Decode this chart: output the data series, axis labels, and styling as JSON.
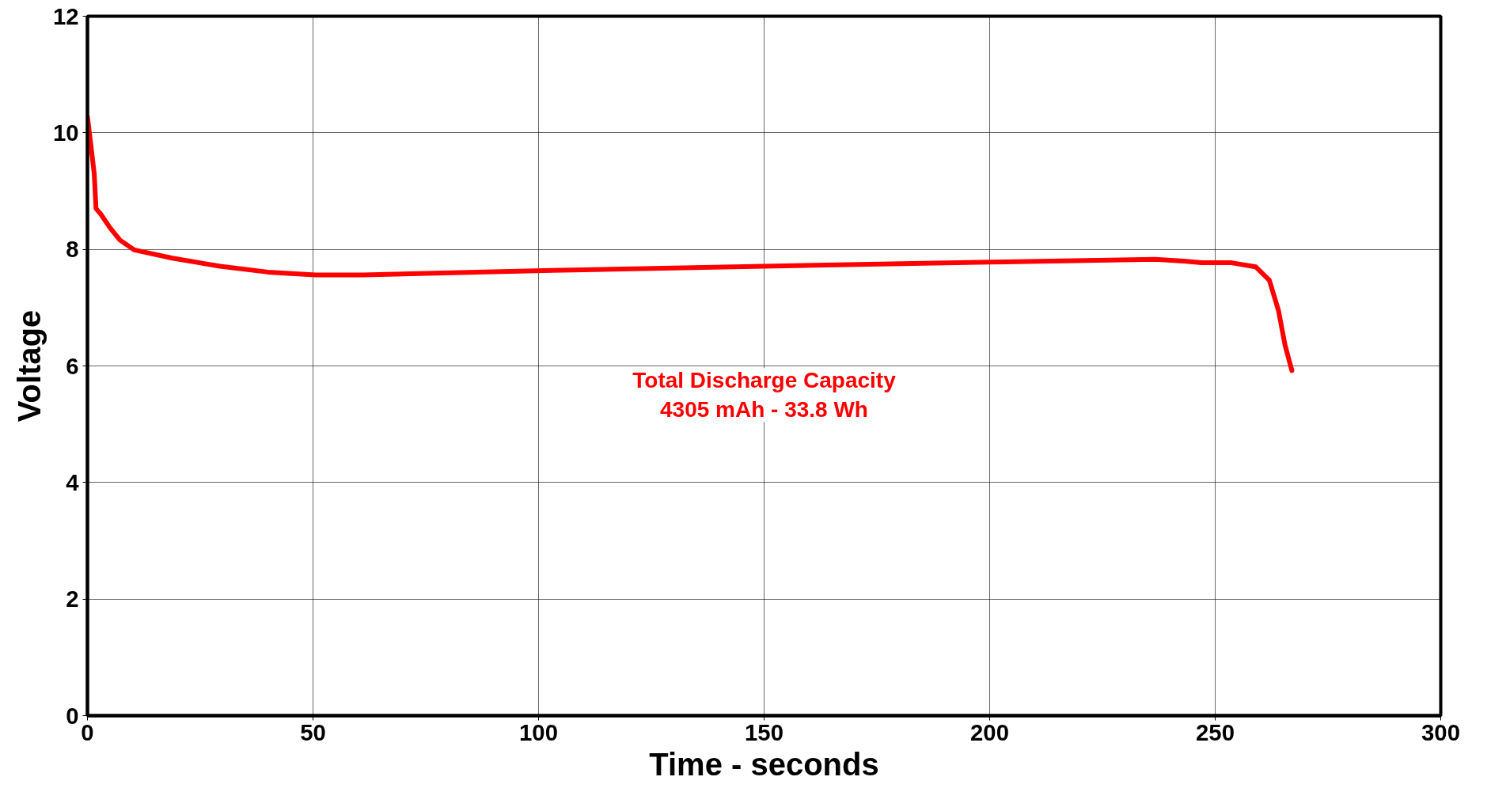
{
  "chart_data": {
    "type": "line",
    "xlabel": "Time - seconds",
    "ylabel": "Voltage",
    "annotations": [
      "Total Discharge Capacity\n4305 mAh - 33.8 Wh"
    ],
    "series": [
      {
        "color": "#ff0000",
        "x": [
          0,
          1.5,
          1.9,
          3,
          5,
          7.2,
          10.4,
          18.8,
          29.4,
          40,
          50.6,
          61,
          103,
          150,
          200,
          236.7,
          243,
          247,
          253.6,
          259,
          262,
          264,
          265.5,
          267
        ],
        "values": [
          10.28,
          9.3,
          8.7,
          8.6,
          8.37,
          8.16,
          7.99,
          7.85,
          7.71,
          7.61,
          7.56,
          7.56,
          7.64,
          7.71,
          7.78,
          7.83,
          7.8,
          7.77,
          7.77,
          7.7,
          7.47,
          6.96,
          6.35,
          5.92
        ]
      }
    ],
    "xlim": [
      0,
      300
    ],
    "ylim": [
      0,
      12
    ],
    "xticks": [
      0,
      50,
      100,
      150,
      200,
      250,
      300
    ],
    "yticks": [
      0,
      2,
      4,
      6,
      8,
      10,
      12
    ],
    "grid": true,
    "marker": "none",
    "line_style": "solid"
  }
}
